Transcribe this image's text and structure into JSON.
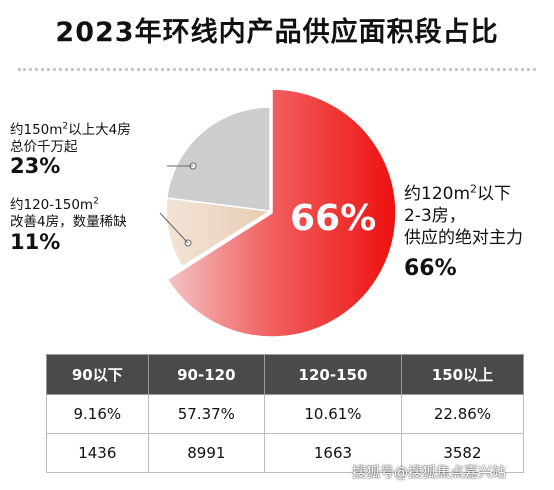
{
  "title": "2023年环线内产品供应面积段占比",
  "chart_data": {
    "type": "pie",
    "slices": [
      {
        "name": "约120m²以下 2-3房，供应的绝对主力",
        "value": 66,
        "label": "66%",
        "color": "#f01818"
      },
      {
        "name": "约120-150m² 改善4房，数量稀缺",
        "value": 11,
        "label": "11%",
        "color": "#ecd7c2"
      },
      {
        "name": "约150m²以上大4房 总价千万起",
        "value": 23,
        "label": "23%",
        "color": "#cdcdcd"
      }
    ],
    "center_label": "66%"
  },
  "annotations": {
    "big4": {
      "line1_pre": "约150m",
      "line1_sup": "2",
      "line1_post": "以上大4房",
      "line2": "总价千万起",
      "pct": "23%"
    },
    "improve4": {
      "line1_pre": "约120-150m",
      "line1_sup": "2",
      "line2": "改善4房，数量稀缺",
      "pct": "11%"
    },
    "main": {
      "line1_pre": "约120m",
      "line1_sup": "2",
      "line1_post": "以下",
      "line2": "2-3房，",
      "line3": "供应的绝对主力",
      "pct": "66%"
    }
  },
  "table": {
    "headers": [
      "90以下",
      "90-120",
      "120-150",
      "150以上"
    ],
    "rows": [
      [
        "9.16%",
        "57.37%",
        "10.61%",
        "22.86%"
      ],
      [
        "1436",
        "8991",
        "1663",
        "3582"
      ]
    ]
  },
  "watermark": "搜狐号@搜狐焦点嘉兴站"
}
